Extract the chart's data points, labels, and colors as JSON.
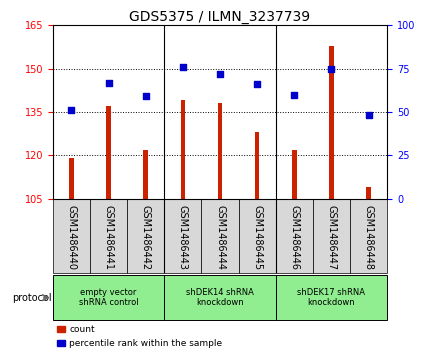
{
  "title": "GDS5375 / ILMN_3237739",
  "samples": [
    "GSM1486440",
    "GSM1486441",
    "GSM1486442",
    "GSM1486443",
    "GSM1486444",
    "GSM1486445",
    "GSM1486446",
    "GSM1486447",
    "GSM1486448"
  ],
  "counts": [
    119,
    137,
    122,
    139,
    138,
    128,
    122,
    158,
    109
  ],
  "percentiles": [
    51,
    67,
    59,
    76,
    72,
    66,
    60,
    75,
    48
  ],
  "ylim_left": [
    105,
    165
  ],
  "ylim_right": [
    0,
    100
  ],
  "yticks_left": [
    105,
    120,
    135,
    150,
    165
  ],
  "yticks_right": [
    0,
    25,
    50,
    75,
    100
  ],
  "bar_color": "#cc2200",
  "dot_color": "#0000cc",
  "bg_color": "#d8d8d8",
  "plot_bg": "#ffffff",
  "group_labels": [
    "empty vector\nshRNA control",
    "shDEK14 shRNA\nknockdown",
    "shDEK17 shRNA\nknockdown"
  ],
  "group_starts": [
    0,
    3,
    6
  ],
  "group_ends": [
    3,
    6,
    9
  ],
  "group_color": "#90EE90",
  "bar_width": 0.12,
  "title_fontsize": 10,
  "tick_fontsize": 7,
  "label_fontsize": 7
}
